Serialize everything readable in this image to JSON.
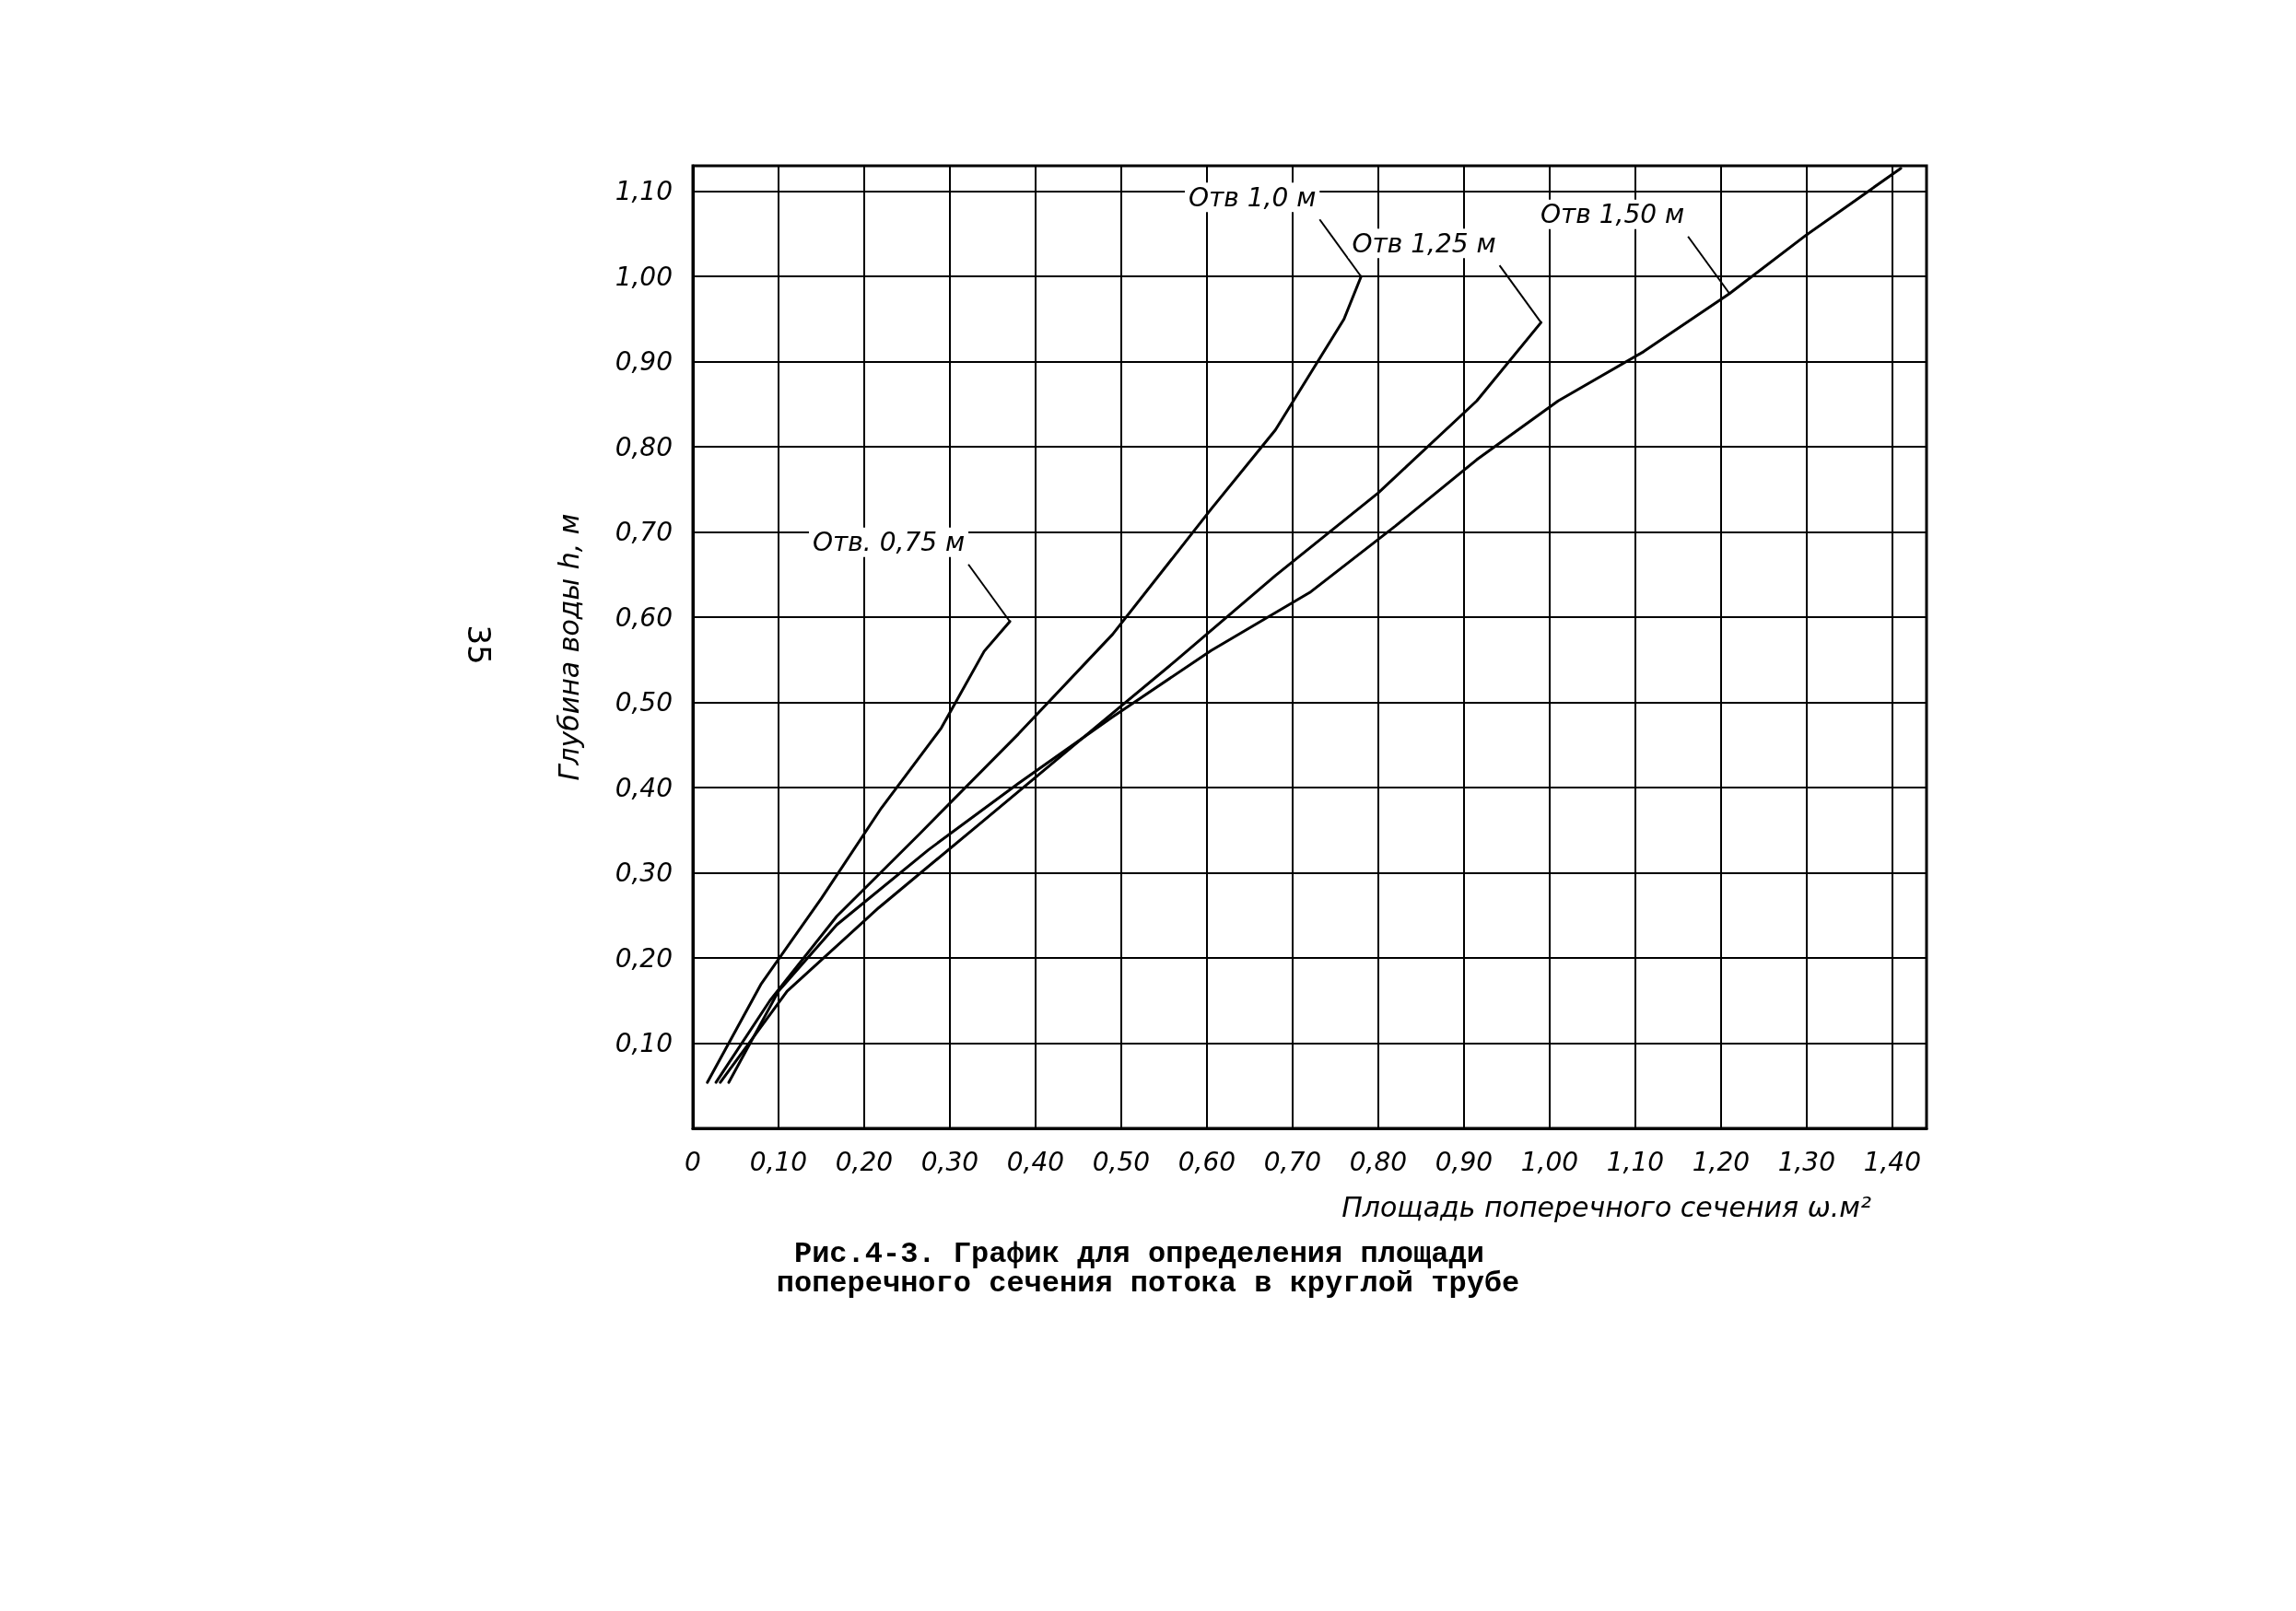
{
  "chart_data": {
    "type": "line",
    "title": "Рис.4-3. График для определения площади поперечного сечения потока в круглой трубе",
    "xlabel": "Площадь поперечного сечения ω.м²",
    "ylabel": "Глубина воды h, м",
    "xlim": [
      0,
      1.44
    ],
    "ylim": [
      0,
      1.13
    ],
    "xticks": [
      {
        "value": 0,
        "label": "0"
      },
      {
        "value": 0.1,
        "label": "0,10"
      },
      {
        "value": 0.2,
        "label": "0,20"
      },
      {
        "value": 0.3,
        "label": "0,30"
      },
      {
        "value": 0.4,
        "label": "0,40"
      },
      {
        "value": 0.5,
        "label": "0,50"
      },
      {
        "value": 0.6,
        "label": "0,60"
      },
      {
        "value": 0.7,
        "label": "0,70"
      },
      {
        "value": 0.8,
        "label": "0,80"
      },
      {
        "value": 0.9,
        "label": "0,90"
      },
      {
        "value": 1.0,
        "label": "1,00"
      },
      {
        "value": 1.1,
        "label": "1,10"
      },
      {
        "value": 1.2,
        "label": "1,20"
      },
      {
        "value": 1.3,
        "label": "1,30"
      },
      {
        "value": 1.4,
        "label": "1,40"
      }
    ],
    "yticks": [
      {
        "value": 0,
        "label": null
      },
      {
        "value": 0.1,
        "label": "0,10"
      },
      {
        "value": 0.2,
        "label": "0,20"
      },
      {
        "value": 0.3,
        "label": "0,30"
      },
      {
        "value": 0.4,
        "label": "0,40"
      },
      {
        "value": 0.5,
        "label": "0,50"
      },
      {
        "value": 0.6,
        "label": "0,60"
      },
      {
        "value": 0.7,
        "label": "0,70"
      },
      {
        "value": 0.8,
        "label": "0,80"
      },
      {
        "value": 0.9,
        "label": "0,90"
      },
      {
        "value": 1.0,
        "label": "1,00"
      },
      {
        "value": 1.1,
        "label": "1,10"
      }
    ],
    "grid": true,
    "line_style": "solid",
    "series": [
      {
        "color": "#000000",
        "x": [
          0.017,
          0.08,
          0.15,
          0.22,
          0.29,
          0.34,
          0.37
        ],
        "values": [
          0.054,
          0.17,
          0.27,
          0.376,
          0.47,
          0.56,
          0.595
        ]
      },
      {
        "color": "#000000",
        "x": [
          0.027,
          0.09,
          0.168,
          0.265,
          0.38,
          0.49,
          0.605,
          0.68,
          0.76,
          0.78
        ],
        "values": [
          0.054,
          0.15,
          0.249,
          0.346,
          0.463,
          0.58,
          0.727,
          0.82,
          0.95,
          1.0
        ]
      },
      {
        "color": "#000000",
        "x": [
          0.032,
          0.11,
          0.217,
          0.333,
          0.45,
          0.566,
          0.68,
          0.8,
          0.915,
          0.99
        ],
        "values": [
          0.054,
          0.161,
          0.259,
          0.356,
          0.454,
          0.551,
          0.649,
          0.746,
          0.854,
          0.946
        ]
      },
      {
        "color": "#000000",
        "x": [
          0.042,
          0.1,
          0.168,
          0.275,
          0.38,
          0.49,
          0.605,
          0.72,
          0.82,
          0.915,
          1.01,
          1.11,
          1.21,
          1.3,
          1.41
        ],
        "values": [
          0.054,
          0.161,
          0.239,
          0.327,
          0.405,
          0.483,
          0.561,
          0.629,
          0.707,
          0.785,
          0.854,
          0.912,
          0.98,
          1.049,
          1.127
        ]
      }
    ],
    "annotations": [
      {
        "text": "Отв. 0,75 м",
        "x": 0.37,
        "y": 0.595
      },
      {
        "text": "Отв 1,0 м",
        "x": 0.78,
        "y": 1.0
      },
      {
        "text": "Отв 1,25 м",
        "x": 0.99,
        "y": 0.946
      },
      {
        "text": "Отв 1,50 м",
        "x": 1.21,
        "y": 0.98
      },
      "35"
    ]
  }
}
